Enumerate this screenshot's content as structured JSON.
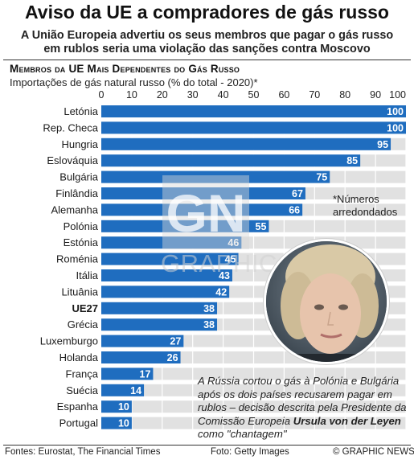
{
  "header": {
    "title": "Aviso da UE a compradores de gás russo",
    "subtitle_line1": "A União Europeia advertiu os seus membros que pagar o gás russo",
    "subtitle_line2": "em rublos seria uma violação das sanções contra Moscovo"
  },
  "chart_data": {
    "type": "bar",
    "orientation": "horizontal",
    "title": "Membros da UE Mais Dependentes do Gás Russo",
    "subtitle": "Importações de gás natural russo (% do total - 2020)*",
    "xlim": [
      0,
      100
    ],
    "xticks": [
      0,
      10,
      20,
      30,
      40,
      50,
      60,
      70,
      80,
      90,
      100
    ],
    "grid": true,
    "categories": [
      "Letónia",
      "Rep. Checa",
      "Hungria",
      "Eslováquia",
      "Bulgária",
      "Finlândia",
      "Alemanha",
      "Polónia",
      "Estónia",
      "Roménia",
      "Itália",
      "Lituânia",
      "UE27",
      "Grécia",
      "Luxemburgo",
      "Holanda",
      "França",
      "Suécia",
      "Espanha",
      "Portugal"
    ],
    "values": [
      100,
      100,
      95,
      85,
      75,
      67,
      66,
      55,
      46,
      45,
      43,
      42,
      38,
      38,
      27,
      26,
      17,
      14,
      10,
      10
    ],
    "highlighted_category": "UE27",
    "bar_color": "#1f6dbf",
    "track_color": "#e1e1e1",
    "label_color": "#ffffff"
  },
  "note": {
    "line1": "*Números",
    "line2": "arredondados"
  },
  "watermark": {
    "logo_text": "GN",
    "brand_text": "GRAPHIC NEWS"
  },
  "caption": {
    "text_before": "A Rússia cortou o gás à Polónia e Bulgária após os dois países recusarem pagar em rublos – decisão descrita pela Presidente da Comissão Europeia ",
    "name": "Ursula von der Leyen",
    "text_after": " como \"chantagem\""
  },
  "footer": {
    "sources": "Fontes: Eurostat, The Financial Times",
    "photo_credit": "Foto: Getty Images",
    "copyright": "© GRAPHIC NEWS"
  }
}
